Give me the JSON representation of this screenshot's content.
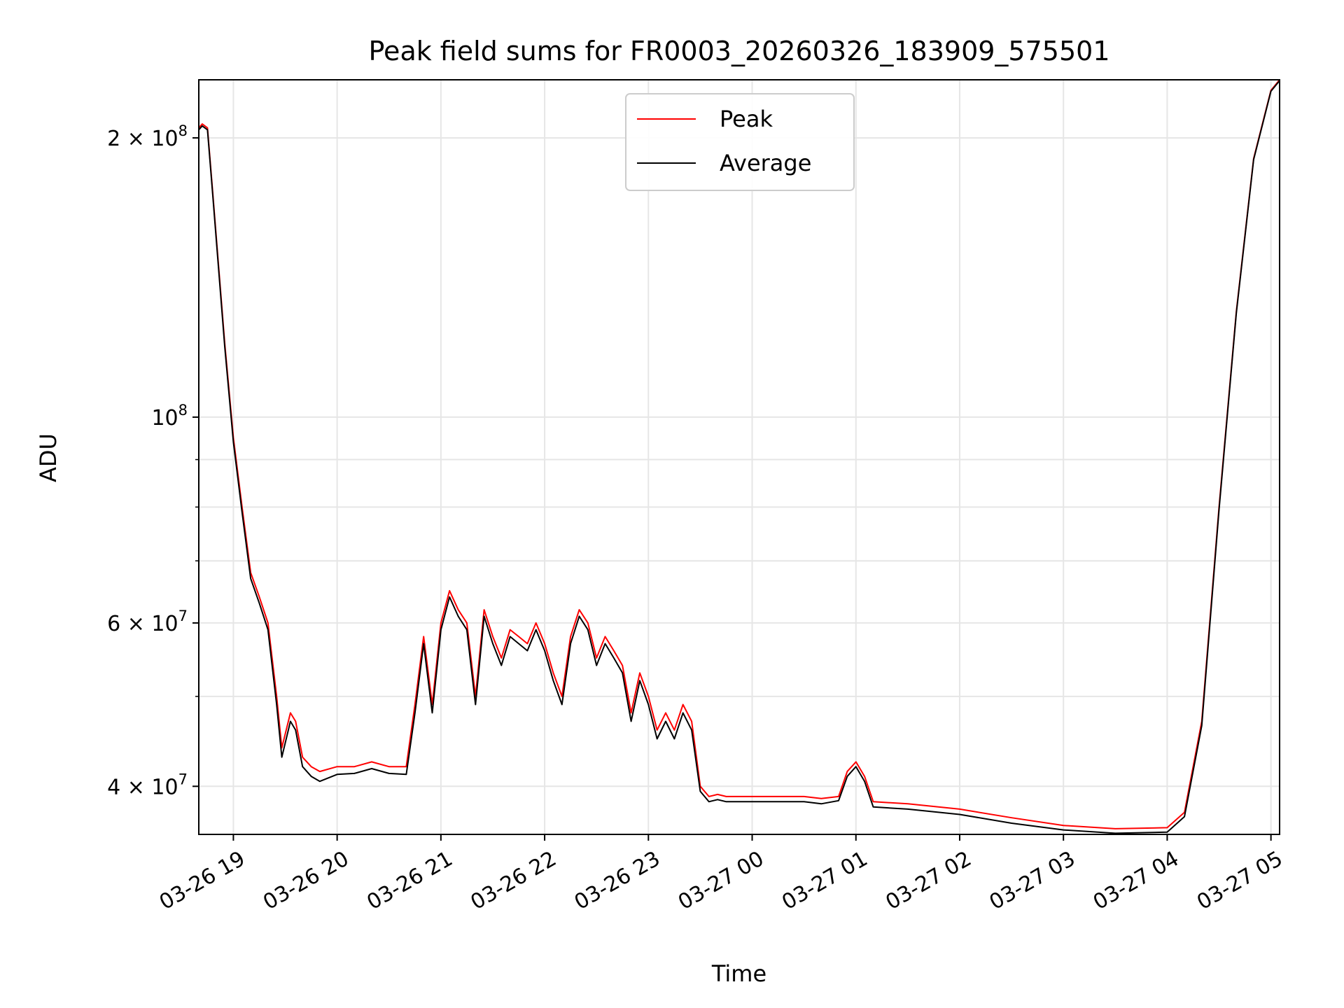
{
  "chart_data": {
    "type": "line",
    "title": "Peak field sums for FR0003_20260326_183909_575501",
    "xlabel": "Time",
    "ylabel": "ADU",
    "y_scale": "log",
    "x_unit": "hours",
    "xlim": [
      "2026-03-26 18:40",
      "2026-03-27 05:05"
    ],
    "ylim": [
      35500000,
      231000000
    ],
    "x_tick_labels": [
      "03-26 19",
      "03-26 20",
      "03-26 21",
      "03-26 22",
      "03-26 23",
      "03-27 00",
      "03-27 01",
      "03-27 02",
      "03-27 03",
      "03-27 04",
      "03-27 05"
    ],
    "x_ticks": [
      "2026-03-26 19:00",
      "2026-03-26 20:00",
      "2026-03-26 21:00",
      "2026-03-26 22:00",
      "2026-03-26 23:00",
      "2026-03-27 00:00",
      "2026-03-27 01:00",
      "2026-03-27 02:00",
      "2026-03-27 03:00",
      "2026-03-27 04:00",
      "2026-03-27 05:00"
    ],
    "y_major_ticks": [
      {
        "value": 40000000,
        "mantissa": "4",
        "exp": "7"
      },
      {
        "value": 60000000,
        "mantissa": "6",
        "exp": "7"
      },
      {
        "value": 100000000,
        "mantissa": "",
        "exp": "8"
      },
      {
        "value": 200000000,
        "mantissa": "2",
        "exp": "8"
      }
    ],
    "y_minor_ticks": [
      50000000,
      70000000,
      80000000,
      90000000
    ],
    "grid": true,
    "legend_position": "top-center",
    "x": [
      "2026-03-26 18:40",
      "2026-03-26 18:42",
      "2026-03-26 18:45",
      "2026-03-26 18:48",
      "2026-03-26 18:55",
      "2026-03-26 19:00",
      "2026-03-26 19:05",
      "2026-03-26 19:10",
      "2026-03-26 19:15",
      "2026-03-26 19:20",
      "2026-03-26 19:25",
      "2026-03-26 19:28",
      "2026-03-26 19:33",
      "2026-03-26 19:36",
      "2026-03-26 19:40",
      "2026-03-26 19:45",
      "2026-03-26 19:50",
      "2026-03-26 20:00",
      "2026-03-26 20:10",
      "2026-03-26 20:20",
      "2026-03-26 20:30",
      "2026-03-26 20:40",
      "2026-03-26 20:45",
      "2026-03-26 20:50",
      "2026-03-26 20:55",
      "2026-03-26 21:00",
      "2026-03-26 21:05",
      "2026-03-26 21:10",
      "2026-03-26 21:15",
      "2026-03-26 21:20",
      "2026-03-26 21:25",
      "2026-03-26 21:30",
      "2026-03-26 21:35",
      "2026-03-26 21:40",
      "2026-03-26 21:45",
      "2026-03-26 21:50",
      "2026-03-26 21:55",
      "2026-03-26 22:00",
      "2026-03-26 22:05",
      "2026-03-26 22:10",
      "2026-03-26 22:15",
      "2026-03-26 22:20",
      "2026-03-26 22:25",
      "2026-03-26 22:30",
      "2026-03-26 22:35",
      "2026-03-26 22:40",
      "2026-03-26 22:45",
      "2026-03-26 22:50",
      "2026-03-26 22:55",
      "2026-03-26 23:00",
      "2026-03-26 23:05",
      "2026-03-26 23:10",
      "2026-03-26 23:15",
      "2026-03-26 23:20",
      "2026-03-26 23:25",
      "2026-03-26 23:30",
      "2026-03-26 23:35",
      "2026-03-26 23:40",
      "2026-03-26 23:45",
      "2026-03-26 23:50",
      "2026-03-27 00:00",
      "2026-03-27 00:10",
      "2026-03-27 00:20",
      "2026-03-27 00:30",
      "2026-03-27 00:40",
      "2026-03-27 00:50",
      "2026-03-27 00:55",
      "2026-03-27 01:00",
      "2026-03-27 01:05",
      "2026-03-27 01:10",
      "2026-03-27 01:30",
      "2026-03-27 02:00",
      "2026-03-27 02:30",
      "2026-03-27 03:00",
      "2026-03-27 03:30",
      "2026-03-27 04:00",
      "2026-03-27 04:10",
      "2026-03-27 04:20",
      "2026-03-27 04:30",
      "2026-03-27 04:40",
      "2026-03-27 04:50",
      "2026-03-27 05:00",
      "2026-03-27 05:05"
    ],
    "series": [
      {
        "name": "Peak",
        "color": "#ff0000",
        "values": [
          205000000,
          207000000,
          205000000,
          175000000,
          120000000,
          95000000,
          80000000,
          68000000,
          64000000,
          60000000,
          50000000,
          44000000,
          48000000,
          47000000,
          43000000,
          42000000,
          41500000,
          42000000,
          42000000,
          42500000,
          42000000,
          42000000,
          49000000,
          58000000,
          49000000,
          60000000,
          65000000,
          62000000,
          60000000,
          50000000,
          62000000,
          58000000,
          55000000,
          59000000,
          58000000,
          57000000,
          60000000,
          57000000,
          53000000,
          50000000,
          58000000,
          62000000,
          60000000,
          55000000,
          58000000,
          56000000,
          54000000,
          48000000,
          53000000,
          50000000,
          46000000,
          48000000,
          46000000,
          49000000,
          47000000,
          40000000,
          39000000,
          39200000,
          39000000,
          39000000,
          39000000,
          39000000,
          39000000,
          39000000,
          38800000,
          39000000,
          41500000,
          42500000,
          41000000,
          38500000,
          38300000,
          37800000,
          37000000,
          36300000,
          36000000,
          36100000,
          37500000,
          47000000,
          80000000,
          130000000,
          190000000,
          225000000,
          231000000
        ]
      },
      {
        "name": "Average",
        "color": "#000000",
        "values": [
          204000000,
          206000000,
          204000000,
          174000000,
          119000000,
          94000000,
          79000000,
          67000000,
          63000000,
          59000000,
          49000000,
          43000000,
          47000000,
          46000000,
          42000000,
          41000000,
          40500000,
          41200000,
          41300000,
          41800000,
          41300000,
          41200000,
          48000000,
          57000000,
          48000000,
          59000000,
          64000000,
          61000000,
          59000000,
          49000000,
          61000000,
          57000000,
          54000000,
          58000000,
          57000000,
          56000000,
          59000000,
          56000000,
          52000000,
          49000000,
          57000000,
          61000000,
          59000000,
          54000000,
          57000000,
          55000000,
          53000000,
          47000000,
          52000000,
          49000000,
          45000000,
          47000000,
          45000000,
          48000000,
          46000000,
          39500000,
          38500000,
          38700000,
          38500000,
          38500000,
          38500000,
          38500000,
          38500000,
          38500000,
          38300000,
          38600000,
          41000000,
          42000000,
          40500000,
          38000000,
          37800000,
          37300000,
          36500000,
          35900000,
          35600000,
          35700000,
          37100000,
          46500000,
          79500000,
          129500000,
          189500000,
          224500000,
          230500000
        ]
      }
    ]
  }
}
